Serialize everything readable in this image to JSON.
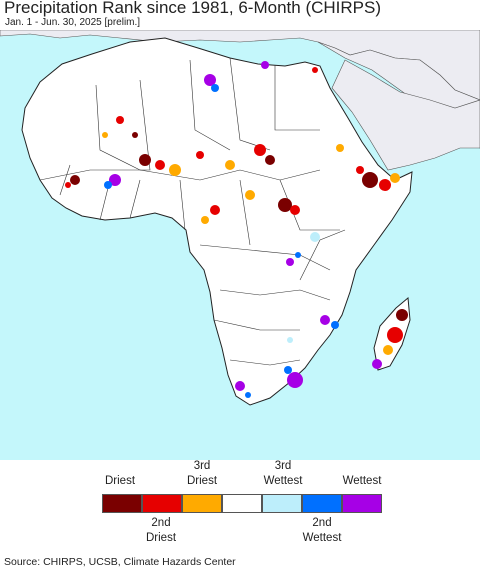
{
  "header": {
    "title": "Precipitation Rank since 1981, 6-Month (CHIRPS)",
    "subtitle": "Jan. 1 - Jun. 30, 2025 [prelim.]"
  },
  "map": {
    "region": "Africa",
    "ocean_color": "#c4f7fb",
    "land_color": "#ffffff",
    "other_land_color": "#ececf2",
    "border_color": "#333333"
  },
  "legend": {
    "top_labels": [
      {
        "lines": [
          "Driest"
        ]
      },
      {
        "lines": [
          "3rd",
          "Driest"
        ]
      },
      {
        "lines": [
          "3rd",
          "Wettest"
        ]
      },
      {
        "lines": [
          "Wettest"
        ]
      }
    ],
    "bottom_labels": [
      {
        "lines": [
          "2nd",
          "Driest"
        ]
      },
      {
        "lines": [
          "2nd",
          "Wettest"
        ]
      }
    ],
    "colors": [
      "#7a0000",
      "#e60000",
      "#ffaa00",
      "#ffffff",
      "#bdeefb",
      "#0070ff",
      "#a600e6"
    ]
  },
  "footer": {
    "source": "Source: CHIRPS, UCSB, Climate Hazards Center"
  }
}
